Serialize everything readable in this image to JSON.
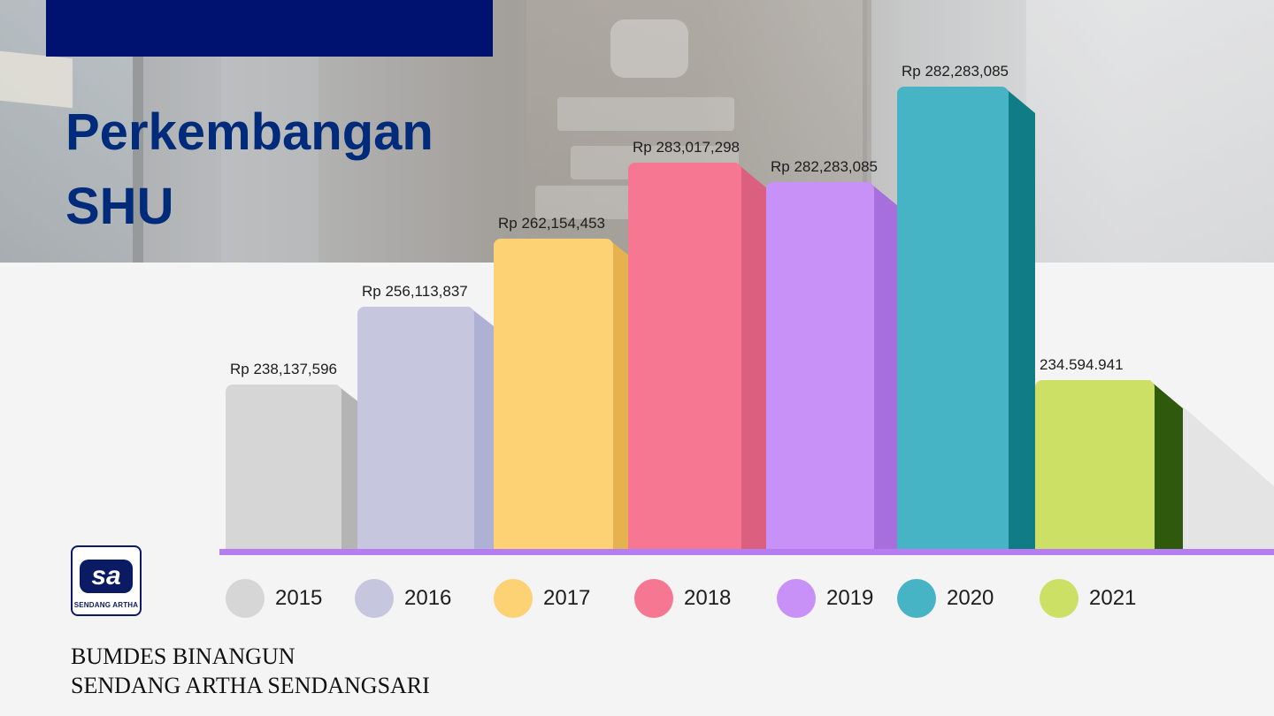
{
  "title_lines": [
    "Perkembangan",
    "SHU"
  ],
  "organization": {
    "lines": [
      "BUMDES BINANGUN",
      "SENDANG ARTHA SENDANGSARI"
    ],
    "logo_text": "sa",
    "logo_caption": "SENDANG ARTHA"
  },
  "chart_data": {
    "type": "bar",
    "categories": [
      "2015",
      "2016",
      "2017",
      "2018",
      "2019",
      "2020",
      "2021"
    ],
    "values": [
      238137596,
      256113837,
      262154453,
      283017298,
      282283085,
      282283085,
      234594941
    ],
    "labels": [
      "Rp 238,137,596",
      "Rp 256,113,837",
      "Rp 262,154,453",
      "Rp 283,017,298",
      "Rp 282,283,085",
      "Rp 282,283,085",
      "234.594.941"
    ],
    "legend": [
      "2015",
      "2016",
      "2017",
      "2018",
      "2019",
      "2020",
      "2021"
    ],
    "colors": [
      "#d6d6d6",
      "#c6c7de",
      "#fdd274",
      "#f57791",
      "#c891f7",
      "#47b4c6",
      "#cbe065"
    ],
    "side_colors": [
      "#b4b4b4",
      "#aeb0d4",
      "#e6b24f",
      "#db607f",
      "#a76fdc",
      "#0f7c86",
      "#2f5a0d"
    ],
    "axis_color": "#b57ef0",
    "legend_placement": "bottom",
    "grid": false
  }
}
